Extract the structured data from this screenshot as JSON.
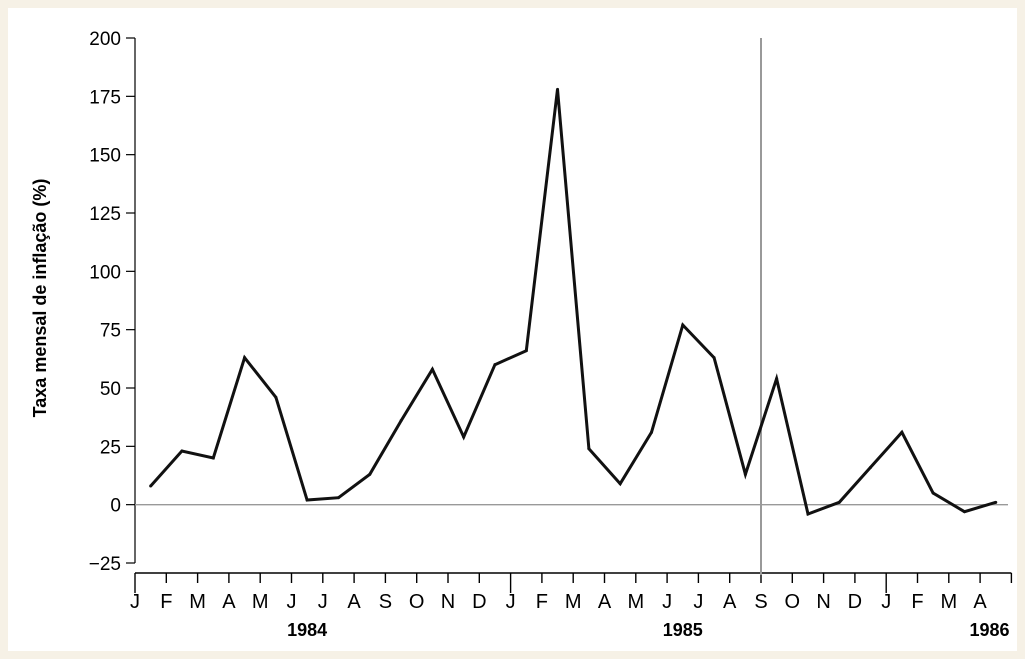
{
  "chart_data": {
    "type": "line",
    "title": "",
    "ylabel": "Taxa mensal de inflação (%)",
    "xlabel": "",
    "ylim": [
      -25,
      200
    ],
    "yticks": [
      -25,
      0,
      25,
      50,
      75,
      100,
      125,
      150,
      175,
      200
    ],
    "grid": false,
    "colors": {
      "line": "#111111",
      "zero_line": "#999999",
      "marker_line": "#999999",
      "background": "#f6f1e6"
    },
    "month_labels": [
      "J",
      "F",
      "M",
      "A",
      "M",
      "J",
      "J",
      "A",
      "S",
      "O",
      "N",
      "D",
      "J",
      "F",
      "M",
      "A",
      "M",
      "J",
      "J",
      "A",
      "S",
      "O",
      "N",
      "D",
      "J",
      "F",
      "M",
      "A"
    ],
    "year_labels": [
      {
        "label": "1984",
        "month_index": 5.5
      },
      {
        "label": "1985",
        "month_index": 17.5
      },
      {
        "label": "1986",
        "month_index": 27.3
      }
    ],
    "vertical_marker_month_index": 20,
    "x": [
      0.5,
      1.5,
      2.5,
      3.5,
      4.5,
      5.5,
      6.5,
      7.5,
      8.5,
      9.5,
      10.5,
      11.5,
      12.5,
      13.5,
      14.5,
      15.5,
      16.5,
      17.5,
      18.5,
      19.5,
      20.5,
      21.5,
      22.5,
      23.5,
      24.5,
      25.5,
      26.5,
      27.5
    ],
    "values": [
      8,
      23,
      20,
      63,
      46,
      2,
      3,
      13,
      36,
      58,
      29,
      60,
      66,
      178,
      24,
      9,
      31,
      77,
      63,
      13,
      54,
      -4,
      1,
      16,
      31,
      5,
      -3,
      1
    ]
  }
}
